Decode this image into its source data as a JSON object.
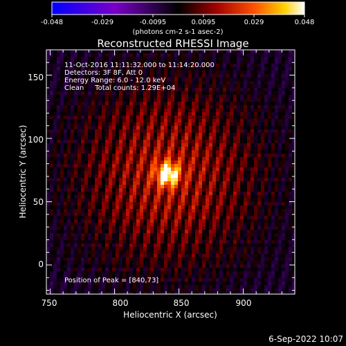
{
  "chart_data": {
    "type": "heatmap",
    "title": "Reconstructed RHESSI Image",
    "xlabel": "Heliocentric X (arcsec)",
    "ylabel": "Heliocentric Y (arcsec)",
    "xlim": [
      747,
      940
    ],
    "ylim": [
      -23,
      170
    ],
    "x_ticks": [
      "750",
      "800",
      "850",
      "900"
    ],
    "y_ticks": [
      "0",
      "50",
      "100",
      "150"
    ],
    "x_tick_values": [
      750,
      800,
      850,
      900
    ],
    "y_tick_values": [
      0,
      50,
      100,
      150
    ],
    "annotations": [
      "11-Oct-2016 11:11:32.000 to 11:14:20.000",
      "Detectors: 3F 8F, Att 0",
      "Energy Range: 6.0 - 12.0 keV",
      "Clean     Total counts: 1.29E+04"
    ],
    "peak_label": "Position of Peak = [840,73]",
    "peak": [
      840,
      73
    ],
    "colorbar": {
      "min": -0.048,
      "max": 0.048,
      "ticks": [
        "-0.048",
        "-0.029",
        "-0.0095",
        "0.0095",
        "0.029",
        "0.048"
      ],
      "unit_label": "(photons cm-2 s-1 asec-2)",
      "colors": [
        "#0000ff",
        "#7a00c8",
        "#000000",
        "#a00000",
        "#ff5000",
        "#ffd000",
        "#ffffff"
      ]
    },
    "grid": false
  },
  "footer": {
    "timestamp": "6-Sep-2022 10:07"
  }
}
